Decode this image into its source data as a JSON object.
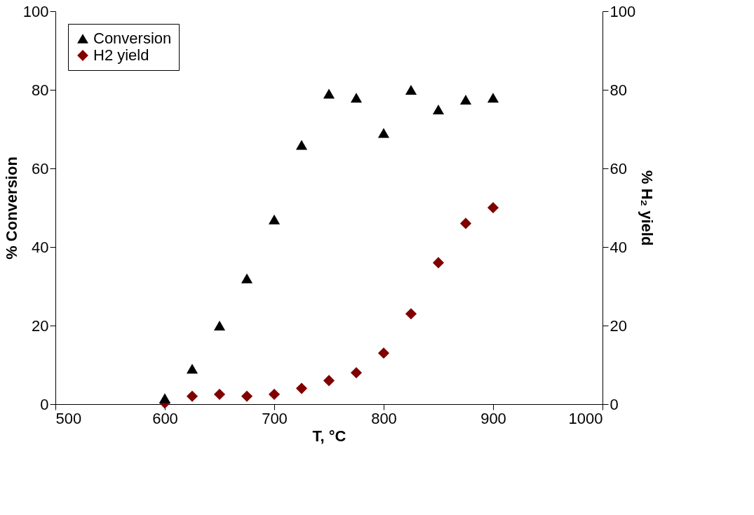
{
  "chart_data": {
    "type": "scatter",
    "xlabel": "T, °C",
    "ylabel": "% Conversion",
    "y2label": "% H₂ yield",
    "x": [
      600,
      625,
      650,
      675,
      700,
      725,
      750,
      775,
      800,
      825,
      850,
      875,
      900
    ],
    "series": [
      {
        "name": "Conversion",
        "color": "#000000",
        "marker": "triangle",
        "values": [
          1.5,
          9,
          20,
          32,
          47,
          66,
          79,
          78,
          69,
          80,
          75,
          77.5,
          78
        ]
      },
      {
        "name": "H2 yield",
        "color": "#800000",
        "marker": "diamond",
        "axis": "y2",
        "values": [
          0.3,
          2,
          2.5,
          2,
          2.5,
          4,
          6,
          8,
          13,
          23,
          36,
          46,
          50
        ]
      }
    ],
    "xlim": [
      500,
      1000
    ],
    "xticks": [
      500,
      600,
      700,
      800,
      900,
      1000
    ],
    "ylim": [
      0,
      100
    ],
    "yticks": [
      0,
      20,
      40,
      60,
      80,
      100
    ],
    "y2lim": [
      0,
      100
    ],
    "y2ticks": [
      0,
      20,
      40,
      60,
      80,
      100
    ],
    "grid": false,
    "legend": "top left"
  }
}
